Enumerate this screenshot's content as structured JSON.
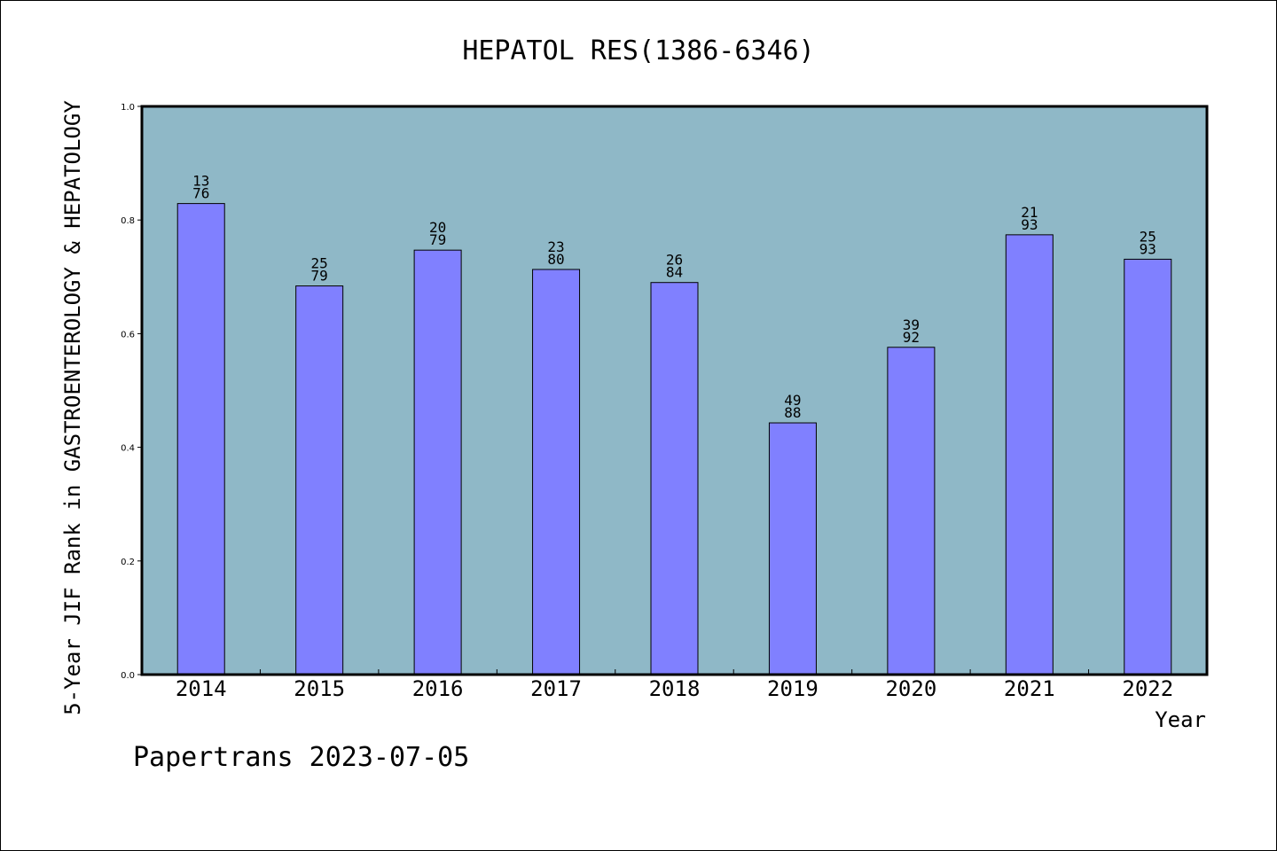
{
  "chart_data": {
    "type": "bar",
    "title": "HEPATOL RES(1386-6346)",
    "xlabel": "Year",
    "ylabel": "5-Year JIF Rank in GASTROENTEROLOGY & HEPATOLOGY",
    "ylim": [
      0.0,
      1.0
    ],
    "yticks": [
      "0.0",
      "0.2",
      "0.4",
      "0.6",
      "0.8",
      "1.0"
    ],
    "categories": [
      "2014",
      "2015",
      "2016",
      "2017",
      "2018",
      "2019",
      "2020",
      "2021",
      "2022"
    ],
    "values": [
      0.829,
      0.684,
      0.747,
      0.713,
      0.69,
      0.443,
      0.576,
      0.774,
      0.731
    ],
    "labels_top": [
      "13",
      "25",
      "20",
      "23",
      "26",
      "49",
      "39",
      "21",
      "25"
    ],
    "labels_bottom": [
      "76",
      "79",
      "79",
      "80",
      "84",
      "88",
      "92",
      "93",
      "93"
    ],
    "plot_background": "#8fb8c7",
    "bar_color": "#8080ff",
    "grid": false
  },
  "footer": "Papertrans 2023-07-05"
}
